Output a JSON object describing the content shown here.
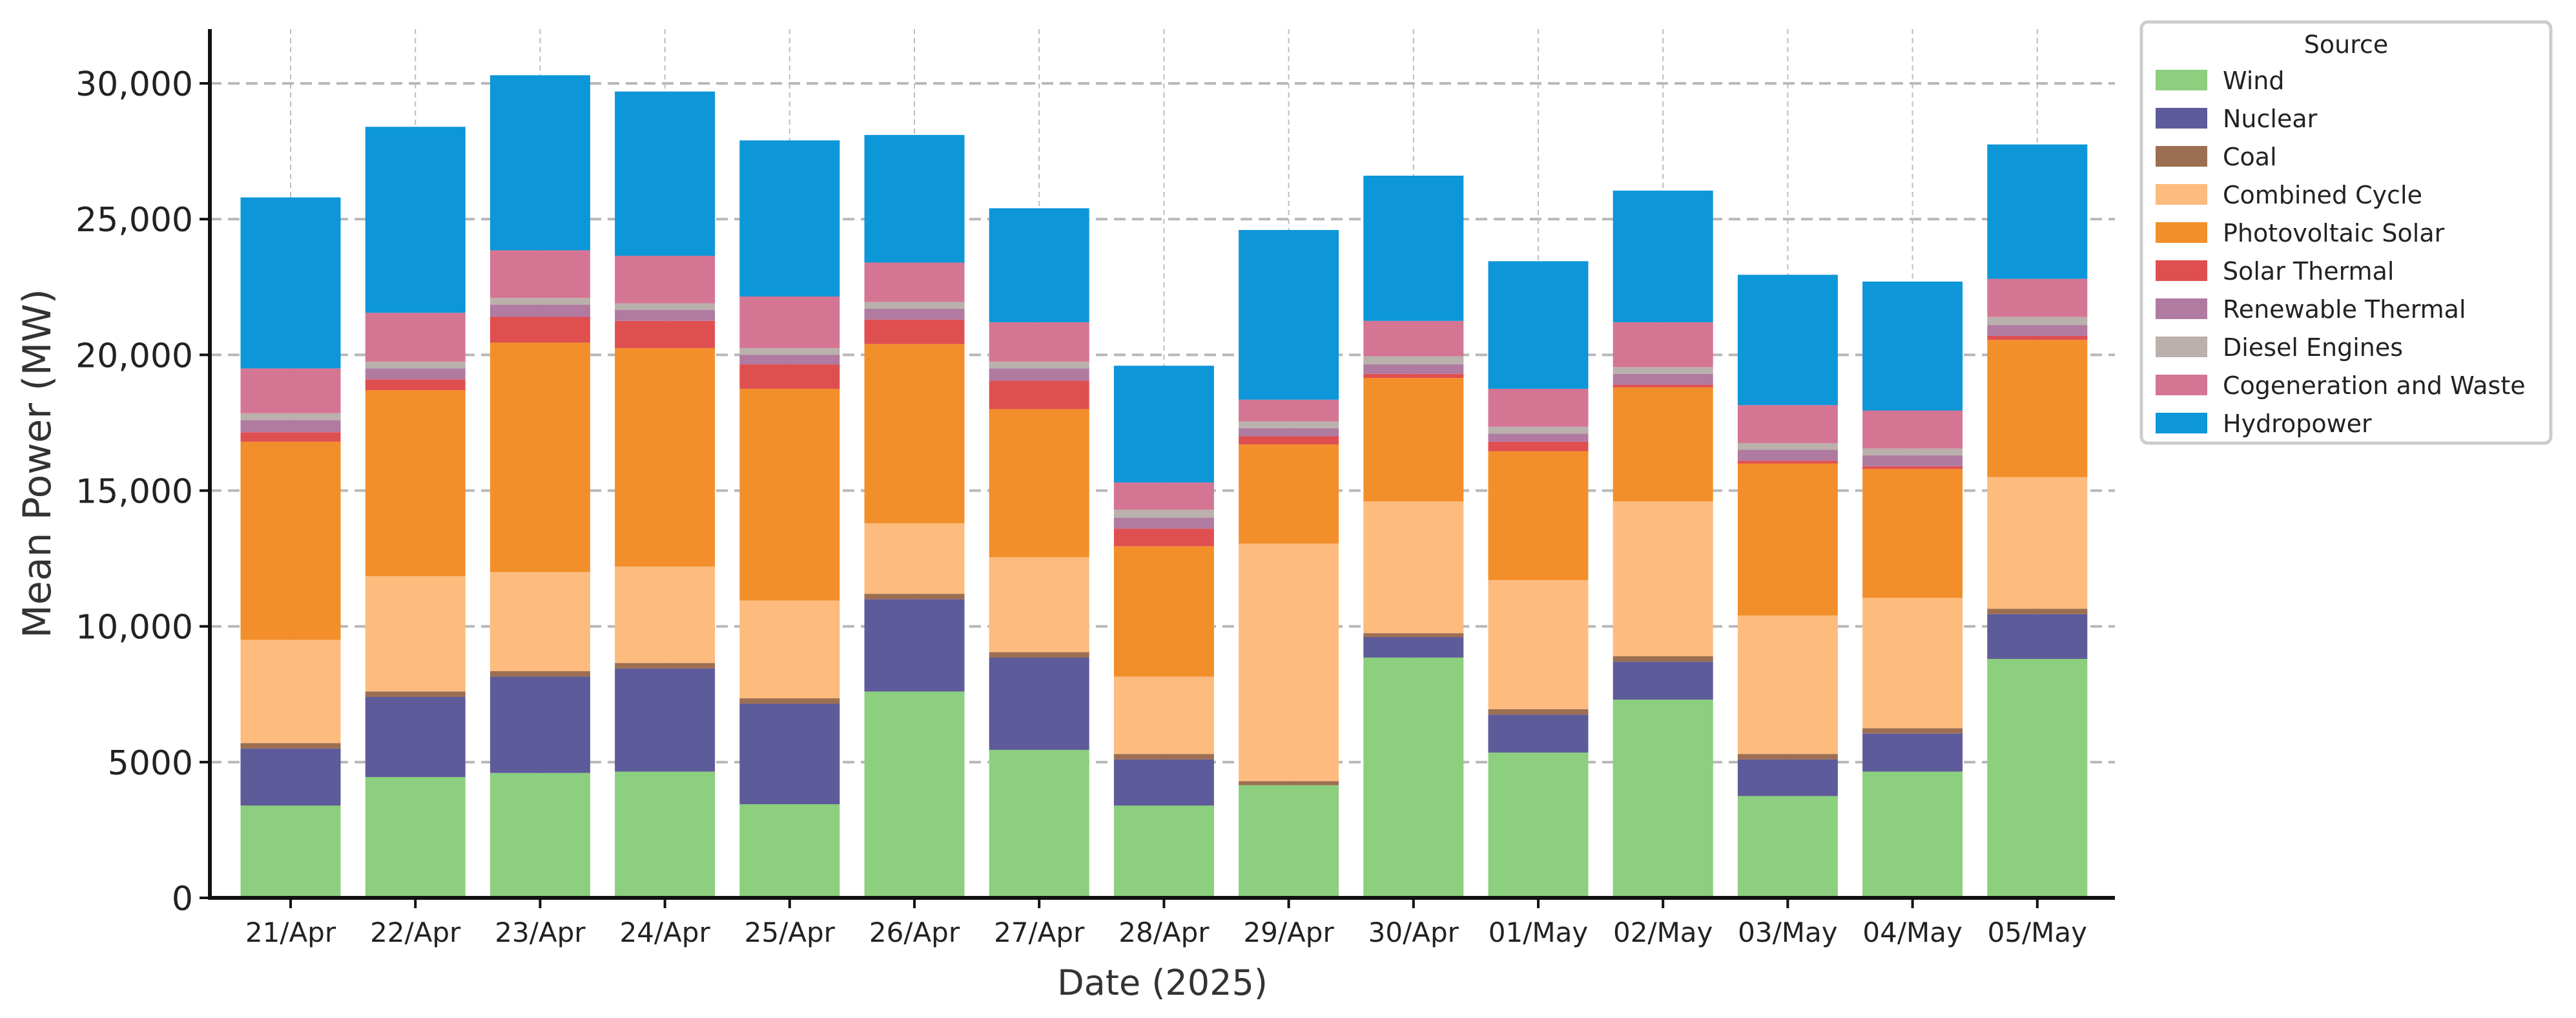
{
  "chart_data": {
    "type": "bar",
    "stacked": true,
    "title": "",
    "xlabel": "Date (2025)",
    "ylabel": "Mean Power (MW)",
    "ylim": [
      0,
      32000
    ],
    "yticks": [
      0,
      5000,
      10000,
      15000,
      20000,
      25000,
      30000
    ],
    "ytick_labels": [
      "0",
      "5000",
      "10,000",
      "15,000",
      "20,000",
      "25,000",
      "30,000"
    ],
    "grid": true,
    "legend": {
      "title": "Source",
      "placement": "outside-top-right"
    },
    "categories": [
      "21/Apr",
      "22/Apr",
      "23/Apr",
      "24/Apr",
      "25/Apr",
      "26/Apr",
      "27/Apr",
      "28/Apr",
      "29/Apr",
      "30/Apr",
      "01/May",
      "02/May",
      "03/May",
      "04/May",
      "05/May"
    ],
    "series": [
      {
        "name": "Wind",
        "color": "#8ccf7e",
        "values": [
          3400,
          4450,
          4600,
          4650,
          3450,
          7600,
          5450,
          3400,
          4150,
          8850,
          5350,
          7300,
          3750,
          4650,
          8800
        ]
      },
      {
        "name": "Nuclear",
        "color": "#5e5b9b",
        "values": [
          2100,
          2950,
          3550,
          3800,
          3700,
          3400,
          3400,
          1700,
          0,
          750,
          1400,
          1400,
          1350,
          1400,
          1650
        ]
      },
      {
        "name": "Coal",
        "color": "#9c6e52",
        "values": [
          200,
          200,
          200,
          200,
          200,
          200,
          200,
          200,
          150,
          150,
          200,
          200,
          200,
          200,
          200
        ]
      },
      {
        "name": "Combined Cycle",
        "color": "#fdbb7e",
        "values": [
          3800,
          4250,
          3650,
          3550,
          3600,
          2600,
          3500,
          2850,
          8750,
          4850,
          4750,
          5700,
          5100,
          4800,
          4850
        ]
      },
      {
        "name": "Photovoltaic Solar",
        "color": "#f28f2b",
        "values": [
          7300,
          6850,
          8450,
          8050,
          7800,
          6600,
          5450,
          4800,
          3650,
          4550,
          4750,
          4200,
          5600,
          4750,
          5050
        ]
      },
      {
        "name": "Solar Thermal",
        "color": "#e04f50",
        "values": [
          350,
          400,
          950,
          1000,
          900,
          900,
          1050,
          650,
          300,
          150,
          350,
          100,
          100,
          100,
          150
        ]
      },
      {
        "name": "Renewable Thermal",
        "color": "#b07aa1",
        "values": [
          450,
          400,
          450,
          400,
          350,
          400,
          450,
          400,
          300,
          350,
          300,
          400,
          400,
          400,
          400
        ]
      },
      {
        "name": "Diesel Engines",
        "color": "#bab0ac",
        "values": [
          250,
          250,
          250,
          250,
          250,
          250,
          250,
          300,
          250,
          300,
          250,
          250,
          250,
          250,
          300
        ]
      },
      {
        "name": "Cogeneration and Waste",
        "color": "#d57594",
        "values": [
          1650,
          1800,
          1750,
          1750,
          1900,
          1450,
          1450,
          1000,
          800,
          1300,
          1400,
          1650,
          1400,
          1400,
          1400
        ]
      },
      {
        "name": "Hydropower",
        "color": "#0d96d8",
        "values": [
          6300,
          6850,
          6450,
          6050,
          5750,
          4700,
          4200,
          4300,
          6250,
          5350,
          4700,
          4850,
          4800,
          4750,
          4950
        ]
      }
    ]
  }
}
